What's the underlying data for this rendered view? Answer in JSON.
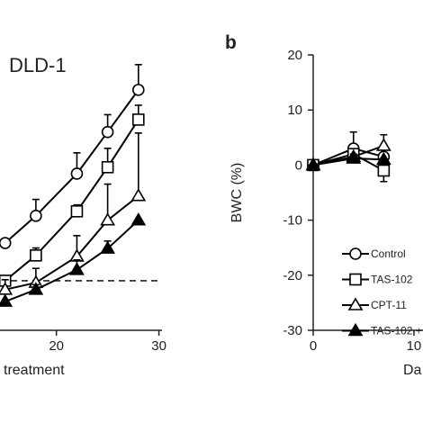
{
  "chart_data": [
    {
      "type": "line",
      "title": "DLD-1",
      "x_label": "treatment",
      "x": [
        15,
        18,
        22,
        25,
        28
      ],
      "xlim": [
        14.5,
        30.3
      ],
      "xticks": [
        20,
        30
      ],
      "ylim": [
        0,
        6.3
      ],
      "reference_line": 1,
      "series": [
        {
          "marker": "circle",
          "color": "#000000",
          "error_side": "up",
          "values": [
            1.76,
            2.31,
            3.16,
            4.0,
            4.85
          ],
          "errors": [
            null,
            0.33,
            0.42,
            0.35,
            0.51
          ]
        },
        {
          "marker": "square",
          "color": "#000000",
          "error_side": "up",
          "values": [
            1.0,
            1.51,
            2.4,
            3.29,
            4.25
          ],
          "errors": [
            null,
            0.15,
            0.13,
            0.38,
            0.29
          ]
        },
        {
          "marker": "triangle",
          "color": "#000000",
          "error_side": "up",
          "values": [
            0.82,
            0.96,
            1.49,
            2.22,
            2.71
          ],
          "errors": [
            0.2,
            0.29,
            0.42,
            0.73,
            1.27
          ]
        },
        {
          "marker": "filled-triangle",
          "color": "#000000",
          "error_side": "up",
          "values": [
            0.58,
            0.82,
            1.22,
            1.65,
            2.22
          ],
          "errors": [
            null,
            0.1,
            0.2,
            0.15,
            null
          ]
        }
      ]
    },
    {
      "type": "line",
      "panel_label": "b",
      "y_label": "BWC (%)",
      "x_label": "Da",
      "x": [
        0,
        4,
        7
      ],
      "xlim": [
        0,
        10.9
      ],
      "xticks": [
        0,
        10
      ],
      "ylim": [
        -30,
        20
      ],
      "yticks": [
        -30,
        -20,
        -10,
        0,
        10,
        20
      ],
      "series": [
        {
          "name": "Control",
          "marker": "circle",
          "color": "#000000",
          "error_side": "up",
          "values": [
            0,
            3,
            1.5
          ],
          "errors": [
            null,
            3,
            null
          ]
        },
        {
          "name": "TAS-102",
          "marker": "square",
          "color": "#000000",
          "error_side": "down",
          "values": [
            0,
            2,
            -1
          ],
          "errors": [
            null,
            null,
            2
          ]
        },
        {
          "name": "CPT-11",
          "marker": "triangle",
          "color": "#000000",
          "error_side": "up",
          "values": [
            0,
            1.5,
            3.5
          ],
          "errors": [
            null,
            null,
            2
          ]
        },
        {
          "name": "TAS-102 +",
          "marker": "filled-triangle",
          "color": "#000000",
          "error_side": "up",
          "values": [
            0,
            1.2,
            1
          ],
          "errors": [
            null,
            0.8,
            null
          ]
        }
      ]
    }
  ]
}
